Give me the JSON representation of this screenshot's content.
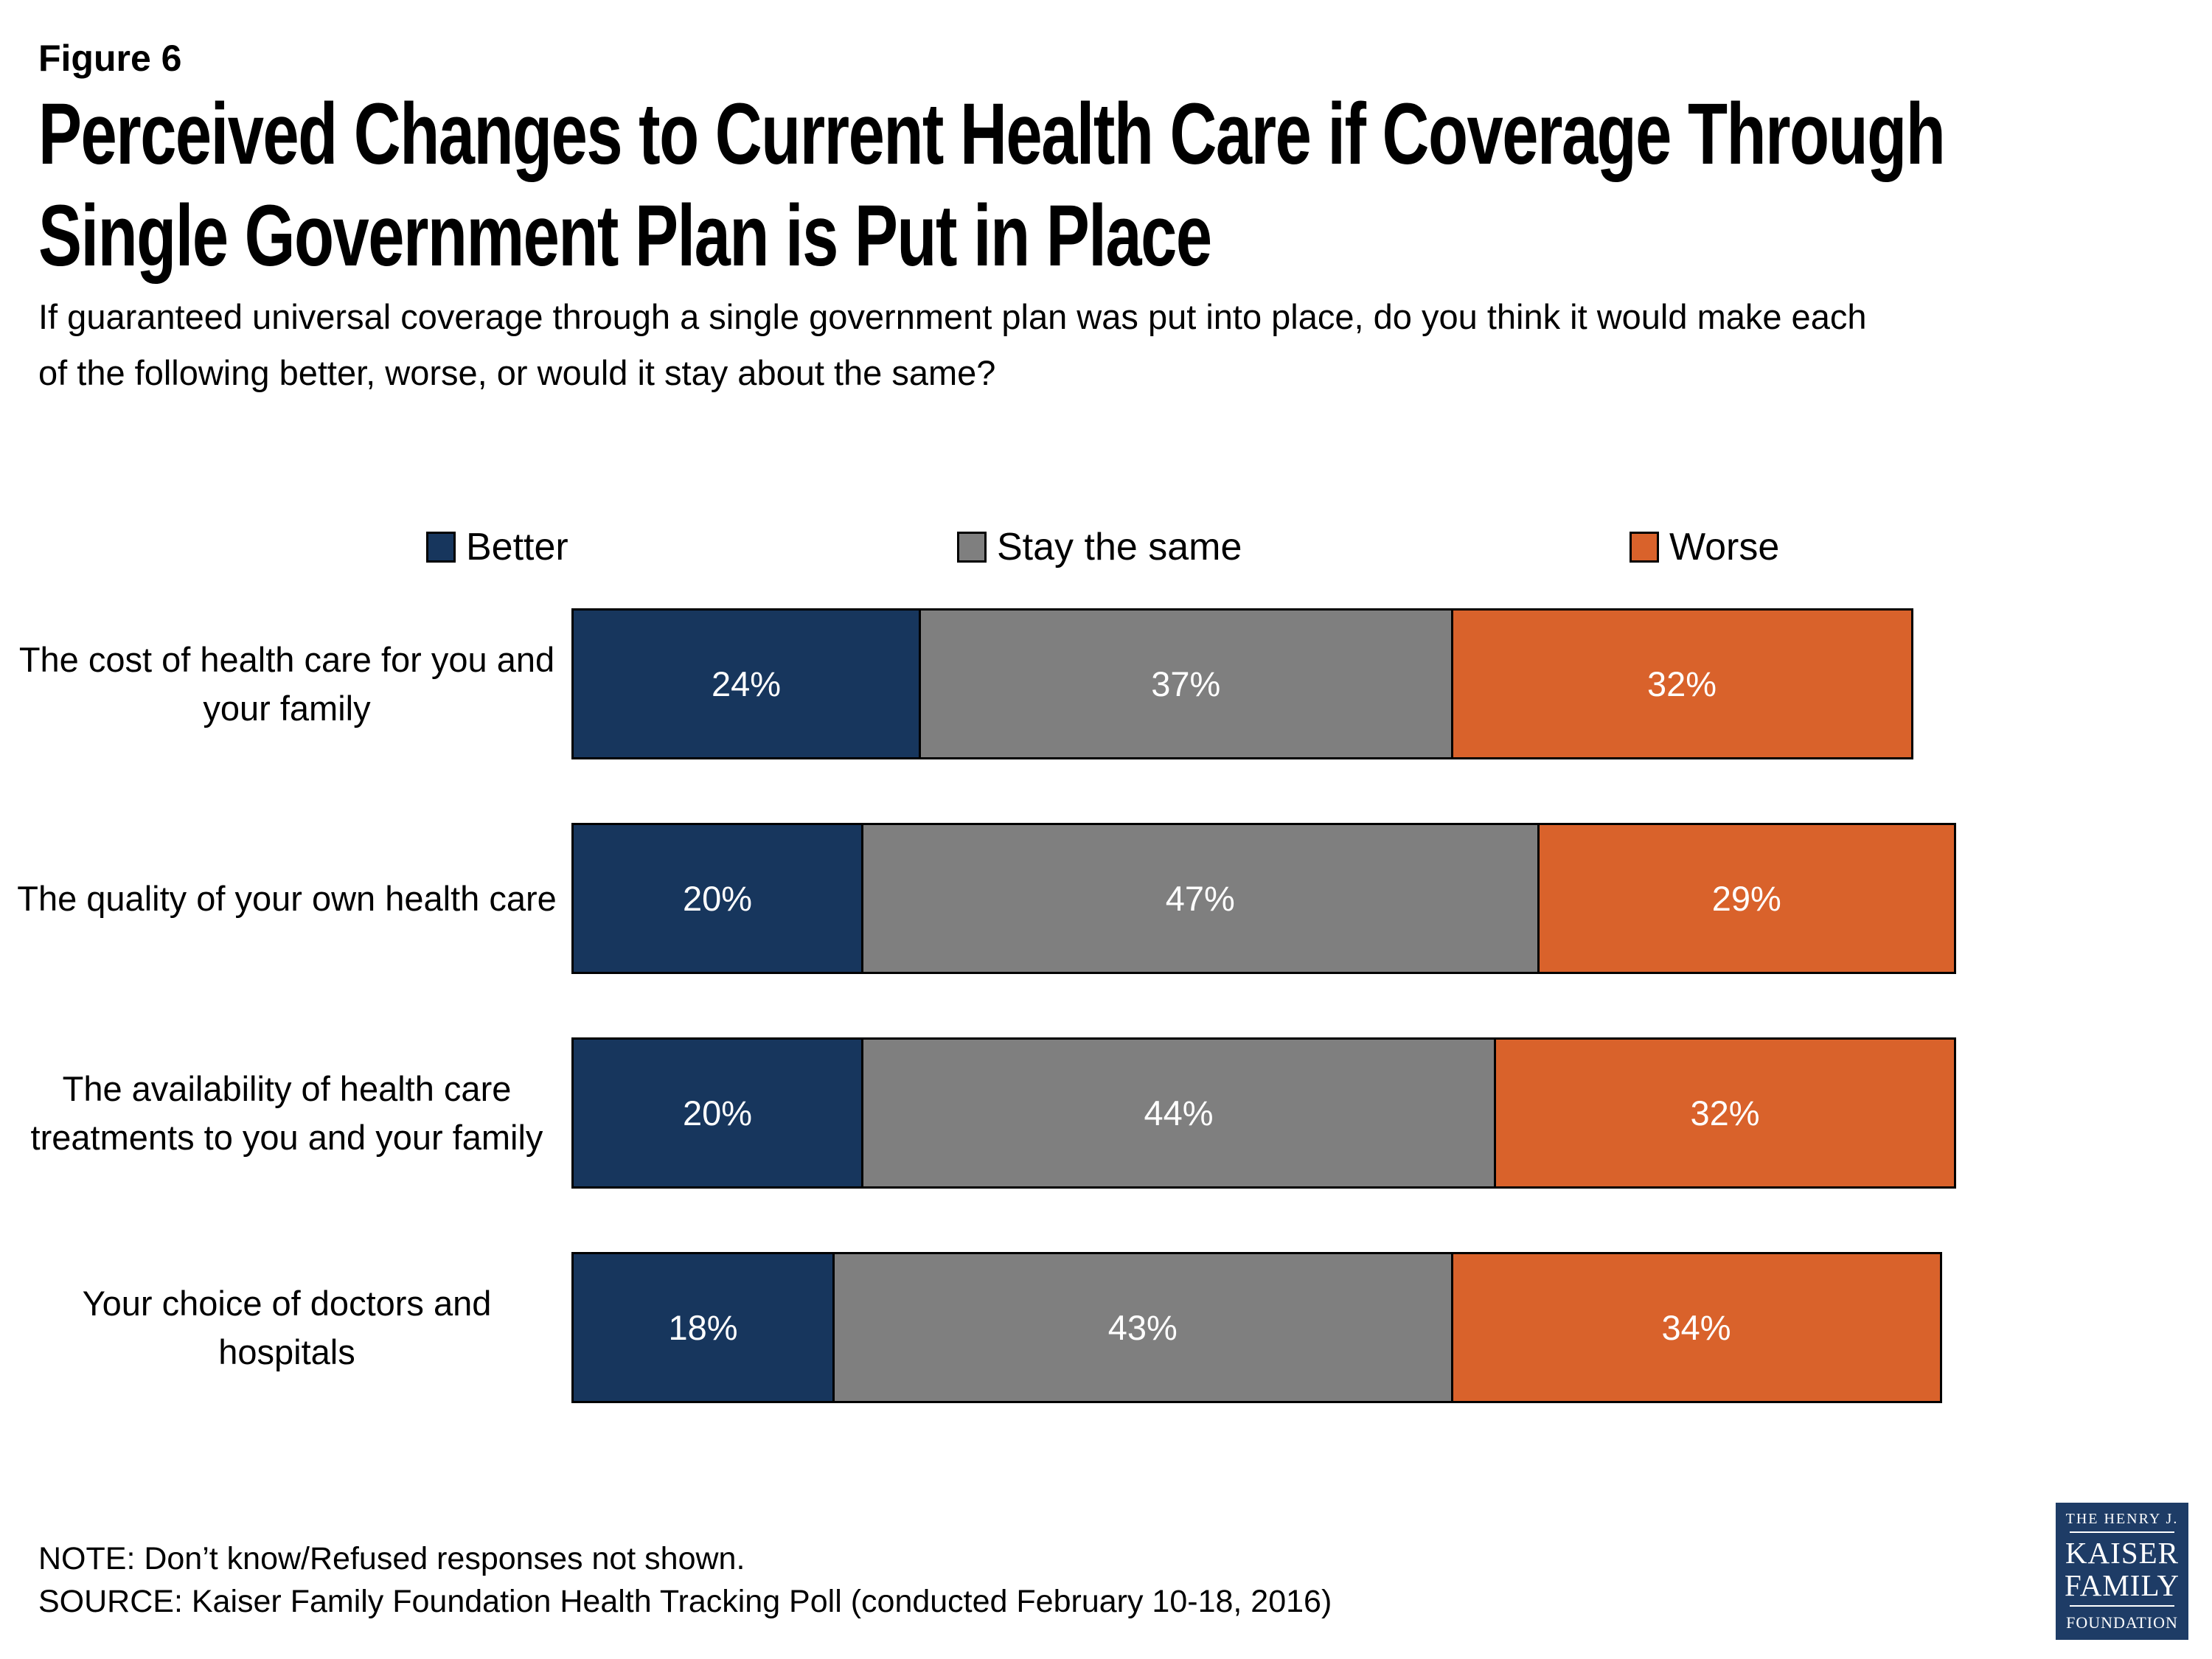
{
  "header": {
    "figure_label": "Figure 6",
    "title_line1": "Perceived Changes to Current Health Care if Coverage Through",
    "title_line2": "Single Government Plan is Put in Place",
    "subtitle_line1": "If guaranteed universal coverage through a single government plan was put into place, do you think it would make each",
    "subtitle_line2": "of the following better, worse, or would it stay about the same?"
  },
  "chart_data": {
    "type": "bar",
    "orientation": "horizontal-stacked",
    "title": "Perceived Changes to Current Health Care if Coverage Through Single Government Plan is Put in Place",
    "categories": [
      "The cost of health care for you and your family",
      "The quality of your own health care",
      "The availability of health care treatments to you and your family",
      "Your choice of doctors and hospitals"
    ],
    "series": [
      {
        "name": "Better",
        "color": "#17365D",
        "values": [
          24,
          20,
          20,
          18
        ]
      },
      {
        "name": "Stay the same",
        "color": "#7F7F7F",
        "values": [
          37,
          47,
          44,
          43
        ]
      },
      {
        "name": "Worse",
        "color": "#D9622B",
        "values": [
          32,
          29,
          32,
          34
        ]
      }
    ],
    "value_suffix": "%",
    "xlim": [
      0,
      100
    ],
    "grid": false,
    "legend_position": "top",
    "data_labels": "inside-center-white"
  },
  "footer": {
    "note": "NOTE: Don’t know/Refused responses not shown.",
    "source": "SOURCE: Kaiser Family Foundation Health Tracking Poll (conducted February 10-18, 2016)"
  },
  "logo": {
    "bg_color": "#1E3C66",
    "line1": "THE HENRY J.",
    "line2": "KAISER",
    "line3": "FAMILY",
    "line4": "FOUNDATION"
  }
}
